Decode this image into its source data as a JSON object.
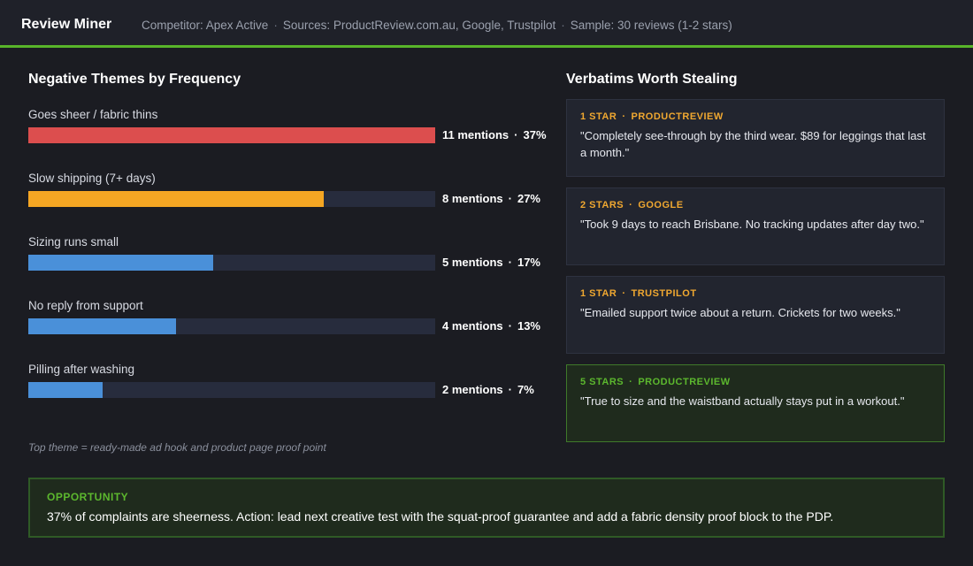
{
  "header": {
    "app_title": "Review Miner",
    "competitor": "Competitor: Apex Active",
    "sources": "Sources: ProductReview.com.au, Google, Trustpilot",
    "sample": "Sample: 30 reviews (1-2 stars)",
    "separator": "·",
    "accent_color": "#58b42a"
  },
  "themes_section": {
    "title": "Negative Themes by Frequency",
    "themes": [
      {
        "label": "Goes sheer / fabric thins",
        "mentions": "11 mentions",
        "percent": "37%",
        "fill_fraction": 1.0,
        "color": "#dc4e4e"
      },
      {
        "label": "Slow shipping (7+ days)",
        "mentions": "8 mentions",
        "percent": "27%",
        "fill_fraction": 0.727,
        "color": "#f5a623"
      },
      {
        "label": "Sizing runs small",
        "mentions": "5 mentions",
        "percent": "17%",
        "fill_fraction": 0.455,
        "color": "#4a90d9"
      },
      {
        "label": "No reply from support",
        "mentions": "4 mentions",
        "percent": "13%",
        "fill_fraction": 0.364,
        "color": "#4a90d9"
      },
      {
        "label": "Pilling after washing",
        "mentions": "2 mentions",
        "percent": "7%",
        "fill_fraction": 0.182,
        "color": "#4a90d9"
      }
    ],
    "footnote": "Top theme = ready-made ad hook and product page proof point"
  },
  "verbatims_section": {
    "title": "Verbatims Worth Stealing",
    "quotes": [
      {
        "rating": "1 STAR",
        "source": "PRODUCTREVIEW",
        "text": "\"Completely see-through by the third wear. $89 for leggings that last a month.\"",
        "positive": false
      },
      {
        "rating": "2 STARS",
        "source": "GOOGLE",
        "text": "\"Took 9 days to reach Brisbane. No tracking updates after day two.\"",
        "positive": false
      },
      {
        "rating": "1 STAR",
        "source": "TRUSTPILOT",
        "text": "\"Emailed support twice about a return. Crickets for two weeks.\"",
        "positive": false
      },
      {
        "rating": "5 STARS",
        "source": "PRODUCTREVIEW",
        "text": "\"True to size and the waistband actually stays put in a workout.\"",
        "positive": true
      }
    ]
  },
  "opportunity": {
    "label": "OPPORTUNITY",
    "text": "37% of complaints are sheerness. Action: lead next creative test with the squat-proof guarantee and add a fabric density proof block to the PDP."
  }
}
